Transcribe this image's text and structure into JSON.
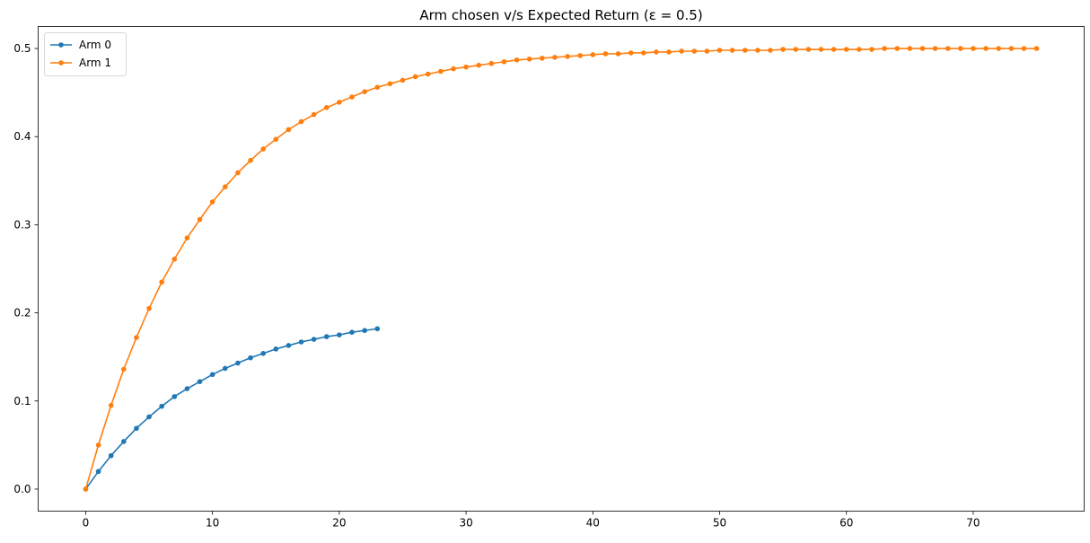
{
  "chart_data": {
    "type": "line",
    "title": "Arm chosen v/s Expected Return (ε = 0.5)",
    "xlabel": "",
    "ylabel": "",
    "xlim": [
      -3.75,
      78.75
    ],
    "ylim": [
      -0.025,
      0.525
    ],
    "xticks": [
      0,
      10,
      20,
      30,
      40,
      50,
      60,
      70
    ],
    "xtick_labels": [
      "0",
      "10",
      "20",
      "30",
      "40",
      "50",
      "60",
      "70"
    ],
    "yticks": [
      0.0,
      0.1,
      0.2,
      0.3,
      0.4,
      0.5
    ],
    "ytick_labels": [
      "0.0",
      "0.1",
      "0.2",
      "0.3",
      "0.4",
      "0.5"
    ],
    "grid": false,
    "legend": {
      "position": "top-left",
      "show": true
    },
    "series": [
      {
        "name": "Arm 0",
        "color": "#1f77b4",
        "marker": "circle",
        "x": [
          0,
          1,
          2,
          3,
          4,
          5,
          6,
          7,
          8,
          9,
          10,
          11,
          12,
          13,
          14,
          15,
          16,
          17,
          18,
          19,
          20,
          21,
          22,
          23
        ],
        "values": [
          0.0,
          0.02,
          0.038,
          0.054,
          0.069,
          0.082,
          0.094,
          0.105,
          0.114,
          0.122,
          0.13,
          0.137,
          0.143,
          0.149,
          0.154,
          0.159,
          0.163,
          0.167,
          0.17,
          0.173,
          0.175,
          0.178,
          0.18,
          0.182
        ]
      },
      {
        "name": "Arm 1",
        "color": "#ff7f0e",
        "marker": "circle",
        "x": [
          0,
          1,
          2,
          3,
          4,
          5,
          6,
          7,
          8,
          9,
          10,
          11,
          12,
          13,
          14,
          15,
          16,
          17,
          18,
          19,
          20,
          21,
          22,
          23,
          24,
          25,
          26,
          27,
          28,
          29,
          30,
          31,
          32,
          33,
          34,
          35,
          36,
          37,
          38,
          39,
          40,
          41,
          42,
          43,
          44,
          45,
          46,
          47,
          48,
          49,
          50,
          51,
          52,
          53,
          54,
          55,
          56,
          57,
          58,
          59,
          60,
          61,
          62,
          63,
          64,
          65,
          66,
          67,
          68,
          69,
          70,
          71,
          72,
          73,
          74,
          75
        ],
        "values": [
          0.0,
          0.05,
          0.095,
          0.136,
          0.172,
          0.205,
          0.235,
          0.261,
          0.285,
          0.306,
          0.326,
          0.343,
          0.359,
          0.373,
          0.386,
          0.397,
          0.408,
          0.417,
          0.425,
          0.433,
          0.439,
          0.445,
          0.451,
          0.456,
          0.46,
          0.464,
          0.468,
          0.471,
          0.474,
          0.477,
          0.479,
          0.481,
          0.483,
          0.485,
          0.487,
          0.488,
          0.489,
          0.49,
          0.491,
          0.492,
          0.493,
          0.494,
          0.494,
          0.495,
          0.495,
          0.496,
          0.496,
          0.497,
          0.497,
          0.497,
          0.498,
          0.498,
          0.498,
          0.498,
          0.498,
          0.499,
          0.499,
          0.499,
          0.499,
          0.499,
          0.499,
          0.499,
          0.499,
          0.5,
          0.5,
          0.5,
          0.5,
          0.5,
          0.5,
          0.5,
          0.5,
          0.5,
          0.5,
          0.5,
          0.5,
          0.5
        ]
      }
    ]
  }
}
